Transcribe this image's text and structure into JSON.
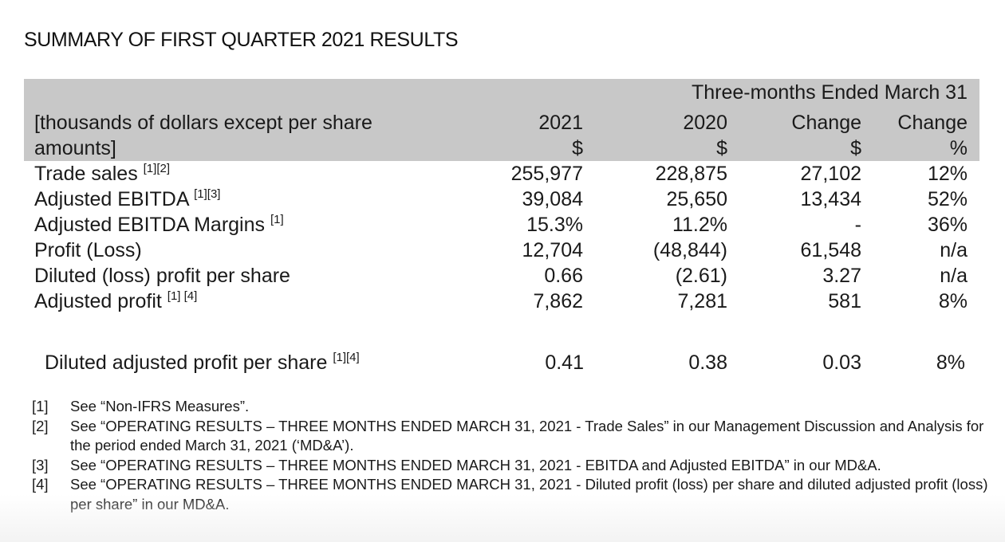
{
  "title": "SUMMARY OF FIRST QUARTER 2021 RESULTS",
  "header": {
    "period": "Three-months Ended March 31",
    "units_line1": "[thousands of dollars except per share",
    "units_line2": "amounts]",
    "columns": [
      {
        "year": "2021",
        "unit": "$"
      },
      {
        "year": "2020",
        "unit": "$"
      },
      {
        "year": "Change",
        "unit": "$"
      },
      {
        "year": "Change",
        "unit": "%"
      }
    ]
  },
  "rows": [
    {
      "label": "Trade sales",
      "notes": "[1][2]",
      "values": [
        "255,977",
        "228,875",
        "27,102",
        "12%"
      ]
    },
    {
      "label": "Adjusted EBITDA",
      "notes": "[1][3]",
      "values": [
        "39,084",
        "25,650",
        "13,434",
        "52%"
      ]
    },
    {
      "label": "Adjusted EBITDA Margins",
      "notes": "[1]",
      "values": [
        "15.3%",
        "11.2%",
        "-",
        "36%"
      ]
    },
    {
      "label": "Profit (Loss)",
      "notes": "",
      "values": [
        "12,704",
        "(48,844)",
        "61,548",
        "n/a"
      ]
    },
    {
      "label": "Diluted (loss) profit per share",
      "notes": "",
      "values": [
        "0.66",
        "(2.61)",
        "3.27",
        "n/a"
      ]
    },
    {
      "label": "Adjusted profit",
      "notes": "[1] [4]",
      "values": [
        "7,862",
        "7,281",
        "581",
        "8%"
      ]
    }
  ],
  "extra_row": {
    "label": "Diluted adjusted profit per share",
    "notes": "[1][4]",
    "values": [
      "0.41",
      "0.38",
      "0.03",
      "8%"
    ]
  },
  "footnotes": [
    {
      "num": "[1]",
      "text": "See “Non-IFRS Measures”."
    },
    {
      "num": "[2]",
      "text": "See “OPERATING RESULTS – THREE MONTHS ENDED MARCH 31, 2021 - Trade Sales” in our Management Discussion and Analysis for the period ended March 31, 2021 (‘MD&A’)."
    },
    {
      "num": "[3]",
      "text": "See “OPERATING RESULTS – THREE MONTHS ENDED MARCH 31, 2021 - EBITDA and Adjusted EBITDA” in our MD&A."
    },
    {
      "num": "[4]",
      "text": "See “OPERATING RESULTS – THREE MONTHS ENDED MARCH 31, 2021 - Diluted profit (loss) per share and diluted adjusted profit (loss) per share” in our MD&A."
    }
  ]
}
